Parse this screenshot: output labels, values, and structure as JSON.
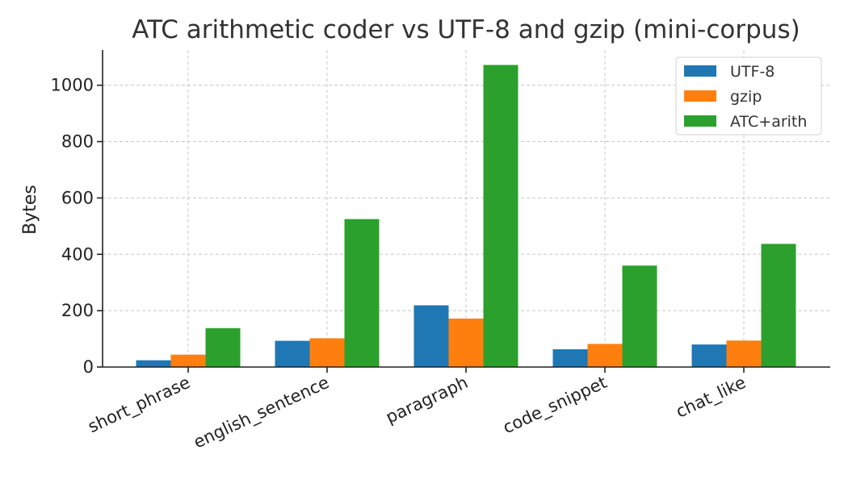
{
  "chart_data": {
    "type": "bar",
    "title": "ATC arithmetic coder vs UTF-8 and gzip (mini-corpus)",
    "xlabel": "",
    "ylabel": "Bytes",
    "categories": [
      "short_phrase",
      "english_sentence",
      "paragraph",
      "code_snippet",
      "chat_like"
    ],
    "series": [
      {
        "name": "UTF-8",
        "color": "#1f77b4",
        "values": [
          24,
          93,
          219,
          63,
          80
        ]
      },
      {
        "name": "gzip",
        "color": "#ff7f0e",
        "values": [
          44,
          102,
          172,
          82,
          94
        ]
      },
      {
        "name": "ATC+arith",
        "color": "#2ca02c",
        "values": [
          138,
          525,
          1072,
          360,
          437
        ]
      }
    ],
    "ylim": [
      0,
      1125
    ],
    "yticks": [
      0,
      200,
      400,
      600,
      800,
      1000
    ],
    "grid": true,
    "legend_position": "top-right"
  }
}
